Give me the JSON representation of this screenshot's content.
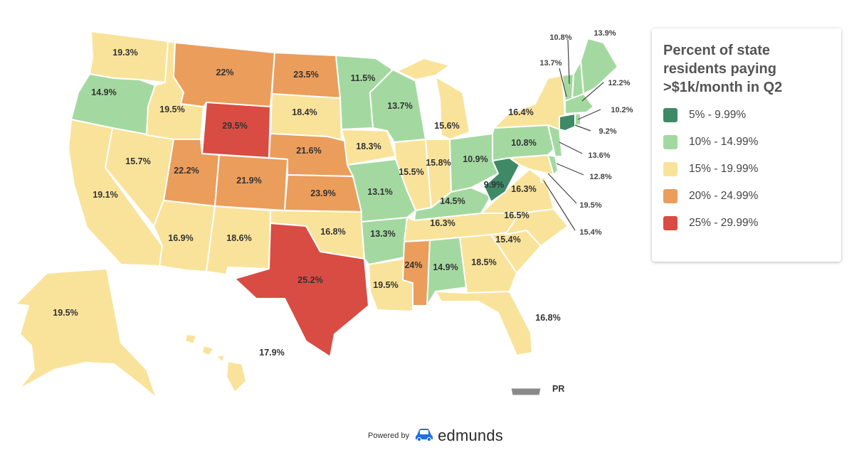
{
  "legend": {
    "title_lines": [
      "Percent of state",
      "residents paying",
      ">$1k/month in Q2"
    ],
    "items": [
      {
        "label": "5% - 9.99%",
        "color": "#3f8a66"
      },
      {
        "label": "10% - 14.99%",
        "color": "#a3d9a0"
      },
      {
        "label": "15% - 19.99%",
        "color": "#f9e39b"
      },
      {
        "label": "20% - 24.99%",
        "color": "#eb9d5c"
      },
      {
        "label": "25% - 29.99%",
        "color": "#d84c43"
      }
    ]
  },
  "credit": {
    "powered_by": "Powered by",
    "brand": "edmunds",
    "icon": "car-icon"
  },
  "territory_label": "PR",
  "states": [
    {
      "id": "WA",
      "value": "19.3%",
      "bin": 2
    },
    {
      "id": "OR",
      "value": "14.9%",
      "bin": 1
    },
    {
      "id": "CA",
      "value": "19.1%",
      "bin": 2
    },
    {
      "id": "NV",
      "value": "15.7%",
      "bin": 2
    },
    {
      "id": "ID",
      "value": "19.5%",
      "bin": 2
    },
    {
      "id": "MT",
      "value": "22%",
      "bin": 3
    },
    {
      "id": "WY",
      "value": "29.5%",
      "bin": 4
    },
    {
      "id": "UT",
      "value": "22.2%",
      "bin": 3
    },
    {
      "id": "CO",
      "value": "21.9%",
      "bin": 3
    },
    {
      "id": "AZ",
      "value": "16.9%",
      "bin": 2
    },
    {
      "id": "NM",
      "value": "18.6%",
      "bin": 2
    },
    {
      "id": "ND",
      "value": "23.5%",
      "bin": 3
    },
    {
      "id": "SD",
      "value": "18.4%",
      "bin": 2
    },
    {
      "id": "NE",
      "value": "21.6%",
      "bin": 3
    },
    {
      "id": "KS",
      "value": "23.9%",
      "bin": 3
    },
    {
      "id": "OK",
      "value": "16.8%",
      "bin": 2
    },
    {
      "id": "TX",
      "value": "25.2%",
      "bin": 4
    },
    {
      "id": "MN",
      "value": "11.5%",
      "bin": 1
    },
    {
      "id": "IA",
      "value": "18.3%",
      "bin": 2
    },
    {
      "id": "MO",
      "value": "13.1%",
      "bin": 1
    },
    {
      "id": "AR",
      "value": "13.3%",
      "bin": 1
    },
    {
      "id": "LA",
      "value": "19.5%",
      "bin": 2
    },
    {
      "id": "WI",
      "value": "13.7%",
      "bin": 1
    },
    {
      "id": "IL",
      "value": "15.5%",
      "bin": 2
    },
    {
      "id": "MI",
      "value": "15.6%",
      "bin": 2
    },
    {
      "id": "IN",
      "value": "15.8%",
      "bin": 2
    },
    {
      "id": "OH",
      "value": "10.9%",
      "bin": 1
    },
    {
      "id": "KY",
      "value": "14.5%",
      "bin": 1
    },
    {
      "id": "TN",
      "value": "16.3%",
      "bin": 2
    },
    {
      "id": "MS",
      "value": "24%",
      "bin": 3
    },
    {
      "id": "AL",
      "value": "14.9%",
      "bin": 1
    },
    {
      "id": "GA",
      "value": "18.5%",
      "bin": 2
    },
    {
      "id": "FL",
      "value": "16.8%",
      "bin": 2
    },
    {
      "id": "SC",
      "value": "15.4%",
      "bin": 2
    },
    {
      "id": "NC",
      "value": "16.5%",
      "bin": 2
    },
    {
      "id": "VA",
      "value": "16.3%",
      "bin": 2
    },
    {
      "id": "WV",
      "value": "9.9%",
      "bin": 0
    },
    {
      "id": "PA",
      "value": "10.8%",
      "bin": 1
    },
    {
      "id": "NY",
      "value": "16.4%",
      "bin": 2
    },
    {
      "id": "ME",
      "value": "13.9%",
      "bin": 1
    },
    {
      "id": "NH",
      "value": "13.7%",
      "bin": 1
    },
    {
      "id": "VT",
      "value": "10.8%",
      "bin": 1
    },
    {
      "id": "MA",
      "value": "12.2%",
      "bin": 1
    },
    {
      "id": "RI",
      "value": "10.2%",
      "bin": 1
    },
    {
      "id": "CT",
      "value": "9.2%",
      "bin": 0
    },
    {
      "id": "NJ",
      "value": "13.6%",
      "bin": 1
    },
    {
      "id": "DE",
      "value": "12.8%",
      "bin": 1
    },
    {
      "id": "MD",
      "value": "19.5%",
      "bin": 2
    },
    {
      "id": "DC",
      "value": "15.4%",
      "bin": 2
    },
    {
      "id": "AK",
      "value": "19.5%",
      "bin": 2
    },
    {
      "id": "HI",
      "value": "17.9%",
      "bin": 2
    }
  ]
}
